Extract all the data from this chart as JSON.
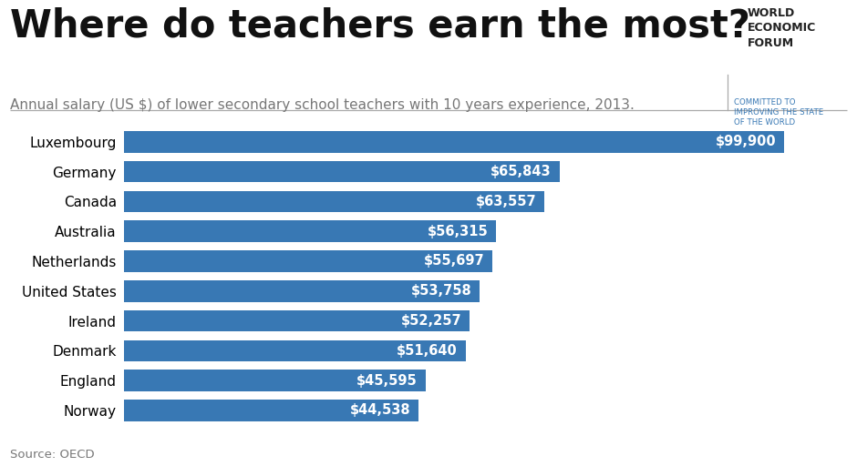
{
  "title": "Where do teachers earn the most?",
  "subtitle": "Annual salary (US $) of lower secondary school teachers with 10 years experience, 2013.",
  "source": "Source: OECD",
  "countries": [
    "Luxembourg",
    "Germany",
    "Canada",
    "Australia",
    "Netherlands",
    "United States",
    "Ireland",
    "Denmark",
    "England",
    "Norway"
  ],
  "values": [
    99900,
    65843,
    63557,
    56315,
    55697,
    53758,
    52257,
    51640,
    45595,
    44538
  ],
  "labels": [
    "$99,900",
    "$65,843",
    "$63,557",
    "$56,315",
    "$55,697",
    "$53,758",
    "$52,257",
    "$51,640",
    "$45,595",
    "$44,538"
  ],
  "bar_color": "#3878b4",
  "label_color": "#ffffff",
  "title_fontsize": 30,
  "subtitle_fontsize": 11,
  "source_fontsize": 9.5,
  "country_fontsize": 11,
  "value_fontsize": 10.5,
  "background_color": "#ffffff",
  "xlim": [
    0,
    107000
  ],
  "wef_line1": "WORLD",
  "wef_line2": "ECONOMIC",
  "wef_line3": "FORUM",
  "wef_sub": "COMMITTED TO\nIMPROVING THE STATE\nOF THE WORLD"
}
